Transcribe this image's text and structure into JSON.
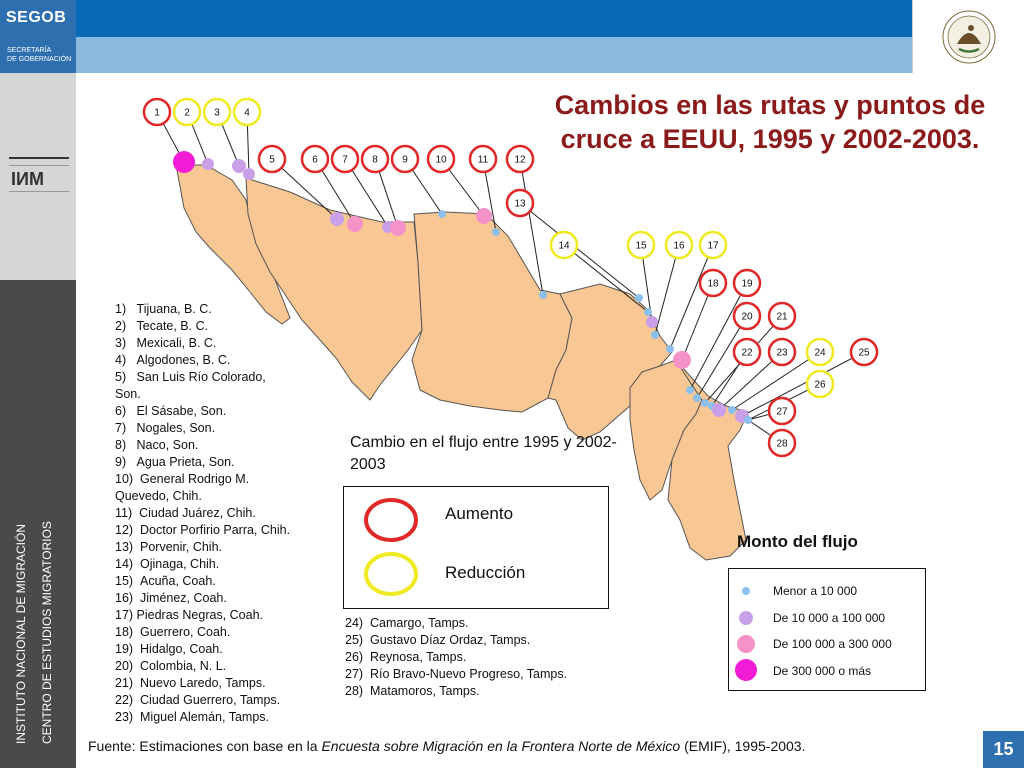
{
  "header": {
    "brand": "SEGOB",
    "secretaria_line1": "SECRETARÍA",
    "secretaria_line2": "DE GOBERNACIÓN",
    "seal_caption": "ESTADOS UNIDOS MEXICANOS"
  },
  "sidebar": {
    "logo_caption1": "SECRETARÍA DE GOBERNACIÓN",
    "logo_caption2": "INSTITUTO NACIONAL DE MIGRACIÓN",
    "vertical_text1": "INSTITUTO NACIONAL DE MIGRACIÓN",
    "vertical_text2": "CENTRO DE ESTUDIOS MIGRATORIOS"
  },
  "title_line1": "Cambios en las rutas y puntos de",
  "title_line2": "cruce a EEUU, 1995 y 2002-2003.",
  "map_circles": [
    {
      "n": "1",
      "type": "aumento"
    },
    {
      "n": "2",
      "type": "reduccion"
    },
    {
      "n": "3",
      "type": "reduccion"
    },
    {
      "n": "4",
      "type": "reduccion"
    },
    {
      "n": "5",
      "type": "aumento"
    },
    {
      "n": "6",
      "type": "aumento"
    },
    {
      "n": "7",
      "type": "aumento"
    },
    {
      "n": "8",
      "type": "aumento"
    },
    {
      "n": "9",
      "type": "aumento"
    },
    {
      "n": "10",
      "type": "aumento"
    },
    {
      "n": "11",
      "type": "aumento"
    },
    {
      "n": "12",
      "type": "aumento"
    },
    {
      "n": "13",
      "type": "aumento"
    },
    {
      "n": "14",
      "type": "reduccion"
    },
    {
      "n": "15",
      "type": "reduccion"
    },
    {
      "n": "16",
      "type": "reduccion"
    },
    {
      "n": "17",
      "type": "reduccion"
    },
    {
      "n": "18",
      "type": "aumento"
    },
    {
      "n": "19",
      "type": "aumento"
    },
    {
      "n": "20",
      "type": "aumento"
    },
    {
      "n": "21",
      "type": "aumento"
    },
    {
      "n": "22",
      "type": "aumento"
    },
    {
      "n": "23",
      "type": "aumento"
    },
    {
      "n": "24",
      "type": "reduccion"
    },
    {
      "n": "25",
      "type": "aumento"
    },
    {
      "n": "26",
      "type": "reduccion"
    },
    {
      "n": "27",
      "type": "aumento"
    },
    {
      "n": "28",
      "type": "aumento"
    }
  ],
  "points_left": [
    "1)   Tijuana, B. C.",
    "2)   Tecate, B. C.",
    "3)   Mexicali, B. C.",
    "4)   Algodones, B. C.",
    "5)   San Luis Río Colorado,",
    "Son.",
    "6)   El Sásabe, Son.",
    "7)   Nogales, Son.",
    "8)   Naco, Son.",
    "9)   Agua Prieta, Son.",
    "10)  General Rodrigo M.",
    "Quevedo, Chih.",
    "11)  Ciudad Juárez, Chih.",
    "12)  Doctor Porfirio Parra, Chih.",
    "13)  Porvenir, Chih.",
    "14)  Ojinaga, Chih.",
    "15)  Acuña, Coah.",
    "16)  Jiménez, Coah.",
    "17) Piedras Negras, Coah.",
    "18)  Guerrero, Coah.",
    "19)  Hidalgo, Coah.",
    "20)  Colombia, N. L.",
    "21)  Nuevo Laredo, Tamps.",
    "22)  Ciudad Guerrero, Tamps.",
    "23)  Miguel Alemán, Tamps."
  ],
  "points_mid": [
    "24)  Camargo, Tamps.",
    "25)  Gustavo Díaz Ordaz, Tamps.",
    "26)  Reynosa, Tamps.",
    "27)  Río Bravo-Nuevo Progreso, Tamps.",
    "28)  Matamoros, Tamps."
  ],
  "change_legend": {
    "title": "Cambio en el flujo entre 1995 y 2002-2003",
    "aumento": "Aumento",
    "reduccion": "Reducción"
  },
  "flow_legend": {
    "title": "Monto del flujo",
    "items": [
      "Menor a 10 000",
      "De 10 000 a 100 000",
      "De 100 000 a 300 000",
      "De 300 000 o más"
    ]
  },
  "colors": {
    "land": "#f9c793",
    "aumento": "#e02828",
    "reduccion": "#f0ea20",
    "flow_small": "#8cc0ec",
    "flow_medium": "#c9a0e8",
    "flow_large": "#f592c8",
    "flow_xlarge": "#f21cd6",
    "title": "#8b1a1a"
  },
  "source_prefix": "Fuente: Estimaciones con base en la ",
  "source_italic": "Encuesta sobre Migración en la Frontera Norte de México",
  "source_suffix": " (EMIF), 1995-2003.",
  "page_number": "15"
}
